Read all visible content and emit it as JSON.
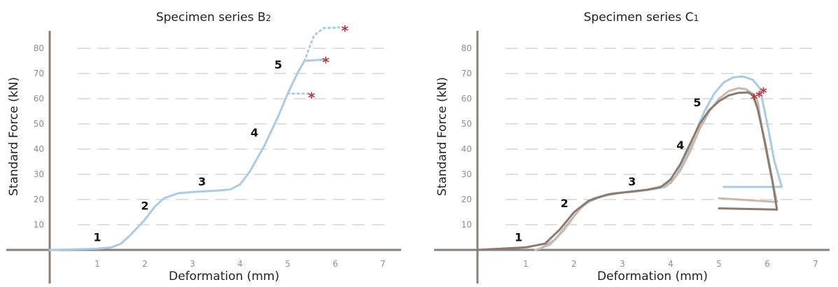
{
  "colors": {
    "axis": "#8a7f77",
    "grid": "#d6d6d6",
    "light_blue": "#a9cbe6",
    "beige": "#c8b9ab",
    "taupe": "#8c7b70",
    "star": "#b5383a"
  },
  "chart_data": [
    {
      "type": "line",
      "title": "Specimen series B",
      "title_subscript": "2",
      "xlabel": "Deformation (mm)",
      "ylabel": "Standard Force (kN)",
      "xlim": [
        0,
        7.3
      ],
      "ylim": [
        0,
        85
      ],
      "xticks": [
        1,
        2,
        3,
        4,
        5,
        6,
        7
      ],
      "yticks": [
        10,
        20,
        30,
        40,
        50,
        60,
        70,
        80
      ],
      "grid": "horizontal-dashed",
      "phase_labels": [
        {
          "text": "1",
          "x": 1.0,
          "y": 3.5
        },
        {
          "text": "2",
          "x": 2.0,
          "y": 16
        },
        {
          "text": "3",
          "x": 3.2,
          "y": 25.5
        },
        {
          "text": "4",
          "x": 4.3,
          "y": 45
        },
        {
          "text": "5",
          "x": 4.8,
          "y": 72
        }
      ],
      "series": [
        {
          "color": "light_blue",
          "style": "solid",
          "points": [
            [
              0,
              0
            ],
            [
              0.5,
              0.2
            ],
            [
              1,
              0.5
            ],
            [
              1.3,
              1
            ],
            [
              1.5,
              2.5
            ],
            [
              1.7,
              6
            ],
            [
              2.0,
              12
            ],
            [
              2.2,
              17
            ],
            [
              2.4,
              20.5
            ],
            [
              2.7,
              22.5
            ],
            [
              3.0,
              23
            ],
            [
              3.5,
              23.5
            ],
            [
              3.8,
              24
            ],
            [
              4.0,
              26
            ],
            [
              4.2,
              31
            ],
            [
              4.5,
              41
            ],
            [
              4.8,
              53
            ],
            [
              5.0,
              62
            ],
            [
              5.2,
              70
            ],
            [
              5.35,
              75
            ],
            [
              5.75,
              75.5
            ]
          ]
        },
        {
          "color": "light_blue",
          "style": "dotted",
          "points": [
            [
              5.0,
              62
            ],
            [
              5.5,
              62
            ]
          ]
        },
        {
          "color": "light_blue",
          "style": "dotted",
          "points": [
            [
              5.35,
              75
            ],
            [
              5.55,
              85
            ],
            [
              5.75,
              88
            ],
            [
              6.1,
              88.3
            ]
          ]
        }
      ],
      "failure_markers": [
        {
          "x": 5.5,
          "y": 61.5
        },
        {
          "x": 5.8,
          "y": 75.5
        },
        {
          "x": 6.2,
          "y": 88
        }
      ]
    },
    {
      "type": "line",
      "title": "Specimen series C",
      "title_subscript": "1",
      "xlabel": "Deformation (mm)",
      "ylabel": "Standard Force (kN)",
      "xlim": [
        0,
        7.3
      ],
      "ylim": [
        0,
        85
      ],
      "xticks": [
        1,
        2,
        3,
        4,
        5,
        6,
        7
      ],
      "yticks": [
        10,
        20,
        30,
        40,
        50,
        60,
        70,
        80
      ],
      "grid": "horizontal-dashed",
      "phase_labels": [
        {
          "text": "1",
          "x": 0.85,
          "y": 3.5
        },
        {
          "text": "2",
          "x": 1.8,
          "y": 17
        },
        {
          "text": "3",
          "x": 3.2,
          "y": 25.5
        },
        {
          "text": "4",
          "x": 4.2,
          "y": 40
        },
        {
          "text": "5",
          "x": 4.55,
          "y": 57
        }
      ],
      "series": [
        {
          "color": "light_blue",
          "style": "solid",
          "points": [
            [
              1.2,
              0
            ],
            [
              1.5,
              2
            ],
            [
              1.8,
              8
            ],
            [
              2.1,
              16
            ],
            [
              2.4,
              20.5
            ],
            [
              2.8,
              22.5
            ],
            [
              3.2,
              23
            ],
            [
              3.6,
              24
            ],
            [
              3.9,
              25
            ],
            [
              4.1,
              29
            ],
            [
              4.3,
              36
            ],
            [
              4.5,
              46
            ],
            [
              4.7,
              55
            ],
            [
              4.9,
              62
            ],
            [
              5.1,
              66.5
            ],
            [
              5.3,
              68.5
            ],
            [
              5.5,
              68.8
            ],
            [
              5.7,
              67.5
            ],
            [
              5.85,
              64
            ],
            [
              6.0,
              50
            ],
            [
              6.15,
              35
            ],
            [
              6.3,
              25
            ],
            [
              5.1,
              25
            ]
          ]
        },
        {
          "color": "beige",
          "style": "solid",
          "points": [
            [
              1.3,
              0.5
            ],
            [
              1.6,
              4
            ],
            [
              1.9,
              11
            ],
            [
              2.2,
              18
            ],
            [
              2.5,
              21
            ],
            [
              2.9,
              22.5
            ],
            [
              3.3,
              23.3
            ],
            [
              3.7,
              24.5
            ],
            [
              4.0,
              26.5
            ],
            [
              4.2,
              31.5
            ],
            [
              4.4,
              39
            ],
            [
              4.6,
              48
            ],
            [
              4.8,
              55
            ],
            [
              5.0,
              60
            ],
            [
              5.2,
              63
            ],
            [
              5.4,
              64.2
            ],
            [
              5.55,
              63.8
            ],
            [
              5.7,
              62
            ],
            [
              5.8,
              59
            ],
            [
              5.9,
              47
            ],
            [
              6.05,
              32
            ],
            [
              6.2,
              19
            ],
            [
              5.0,
              20.5
            ]
          ]
        },
        {
          "color": "taupe",
          "style": "solid",
          "points": [
            [
              0,
              0
            ],
            [
              1.0,
              1
            ],
            [
              1.4,
              2.5
            ],
            [
              1.7,
              8
            ],
            [
              2.0,
              15
            ],
            [
              2.3,
              19.5
            ],
            [
              2.7,
              22
            ],
            [
              3.1,
              23
            ],
            [
              3.5,
              23.8
            ],
            [
              3.8,
              25
            ],
            [
              4.0,
              28
            ],
            [
              4.2,
              34
            ],
            [
              4.4,
              42
            ],
            [
              4.6,
              50
            ],
            [
              4.8,
              55.5
            ],
            [
              5.0,
              59
            ],
            [
              5.2,
              61.3
            ],
            [
              5.4,
              62.3
            ],
            [
              5.6,
              62.5
            ],
            [
              5.7,
              61.5
            ],
            [
              5.8,
              56
            ],
            [
              5.95,
              43
            ],
            [
              6.1,
              28
            ],
            [
              6.2,
              16
            ],
            [
              5.0,
              16.5
            ]
          ]
        }
      ],
      "failure_markers": [
        {
          "x": 5.73,
          "y": 61
        },
        {
          "x": 5.83,
          "y": 62
        },
        {
          "x": 5.92,
          "y": 63.5
        }
      ]
    }
  ]
}
